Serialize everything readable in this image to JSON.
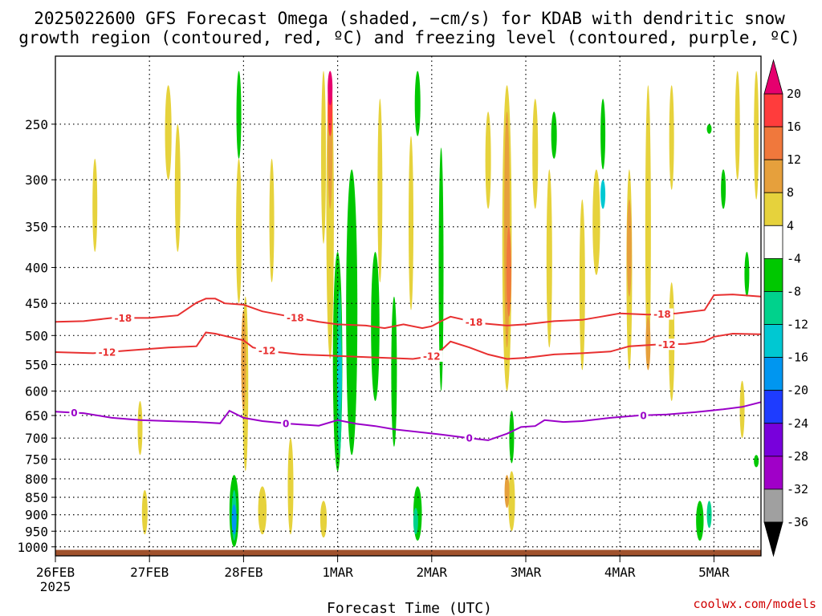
{
  "chart_data": {
    "type": "heatmap",
    "title_lines": [
      "2025022600 GFS Forecast Omega (shaded, −cm/s) for KDAB with dendritic snow",
      "growth region (contoured, red, ºC) and freezing level (contoured, purple, ºC)"
    ],
    "xlabel": "Forecast Time (UTC)",
    "x_tick_labels": [
      "26FEB",
      "27FEB",
      "28FEB",
      "1MAR",
      "2MAR",
      "3MAR",
      "4MAR",
      "5MAR"
    ],
    "x_tick_sublabel": "2025",
    "x_range_days": [
      0,
      7.5
    ],
    "y_tick_labels": [
      250,
      300,
      350,
      400,
      450,
      500,
      550,
      600,
      650,
      700,
      750,
      800,
      850,
      900,
      950,
      1000
    ],
    "y_range_hpa": [
      200,
      1030
    ],
    "y_scale": "log-pressure",
    "grid": true,
    "colorbar": {
      "levels": [
        20,
        16,
        12,
        8,
        4,
        -4,
        -8,
        -12,
        -16,
        -20,
        -24,
        -28,
        -32,
        -36
      ],
      "colors": [
        "#ff3c3c",
        "#f0783c",
        "#e6a03c",
        "#e6d23c",
        "#fffffe",
        "#00c800",
        "#00d28c",
        "#00c8d2",
        "#0096f0",
        "#1e3cff",
        "#7800dc",
        "#a000c8",
        "#a0a0a0",
        "#000000"
      ],
      "top_arrow_color": "#e6006e",
      "bottom_arrow_color": "#000000"
    },
    "ground_color": "#a0522d",
    "contours": [
      {
        "label": "-18",
        "color": "#e83030",
        "label_positions_days": [
          0.72,
          2.55,
          4.45,
          6.45
        ],
        "points": [
          [
            0,
            478
          ],
          [
            0.3,
            477
          ],
          [
            0.6,
            472
          ],
          [
            1.0,
            472
          ],
          [
            1.3,
            468
          ],
          [
            1.5,
            449
          ],
          [
            1.6,
            443
          ],
          [
            1.7,
            443
          ],
          [
            1.8,
            450
          ],
          [
            2.0,
            452
          ],
          [
            2.2,
            462
          ],
          [
            2.5,
            470
          ],
          [
            2.8,
            478
          ],
          [
            3.0,
            482
          ],
          [
            3.3,
            484
          ],
          [
            3.5,
            488
          ],
          [
            3.7,
            482
          ],
          [
            3.9,
            488
          ],
          [
            4.0,
            485
          ],
          [
            4.1,
            477
          ],
          [
            4.2,
            470
          ],
          [
            4.5,
            480
          ],
          [
            4.8,
            484
          ],
          [
            5.0,
            482
          ],
          [
            5.3,
            477
          ],
          [
            5.6,
            475
          ],
          [
            5.8,
            470
          ],
          [
            6.0,
            465
          ],
          [
            6.3,
            467
          ],
          [
            6.6,
            465
          ],
          [
            6.9,
            460
          ],
          [
            7.0,
            438
          ],
          [
            7.2,
            437
          ],
          [
            7.5,
            440
          ]
        ]
      },
      {
        "label": "-12",
        "color": "#e83030",
        "label_positions_days": [
          0.55,
          2.25,
          4.0,
          6.5
        ],
        "points": [
          [
            0,
            528
          ],
          [
            0.4,
            530
          ],
          [
            0.8,
            525
          ],
          [
            1.2,
            520
          ],
          [
            1.5,
            518
          ],
          [
            1.6,
            495
          ],
          [
            1.7,
            497
          ],
          [
            2.0,
            508
          ],
          [
            2.1,
            520
          ],
          [
            2.3,
            527
          ],
          [
            2.6,
            532
          ],
          [
            2.9,
            534
          ],
          [
            3.2,
            536
          ],
          [
            3.5,
            538
          ],
          [
            3.8,
            540
          ],
          [
            4.0,
            535
          ],
          [
            4.1,
            525
          ],
          [
            4.2,
            510
          ],
          [
            4.4,
            520
          ],
          [
            4.6,
            532
          ],
          [
            4.8,
            540
          ],
          [
            5.0,
            538
          ],
          [
            5.3,
            532
          ],
          [
            5.6,
            530
          ],
          [
            5.9,
            527
          ],
          [
            6.1,
            518
          ],
          [
            6.4,
            515
          ],
          [
            6.7,
            514
          ],
          [
            6.9,
            510
          ],
          [
            7.0,
            502
          ],
          [
            7.2,
            497
          ],
          [
            7.5,
            498
          ]
        ]
      },
      {
        "label": "0",
        "color": "#9a00c8",
        "label_positions_days": [
          0.2,
          2.45,
          4.4,
          6.25
        ],
        "points": [
          [
            0,
            642
          ],
          [
            0.3,
            645
          ],
          [
            0.6,
            655
          ],
          [
            0.9,
            660
          ],
          [
            1.2,
            662
          ],
          [
            1.5,
            664
          ],
          [
            1.75,
            667
          ],
          [
            1.85,
            640
          ],
          [
            2.0,
            655
          ],
          [
            2.2,
            662
          ],
          [
            2.5,
            668
          ],
          [
            2.8,
            672
          ],
          [
            3.0,
            660
          ],
          [
            3.2,
            668
          ],
          [
            3.4,
            673
          ],
          [
            3.6,
            680
          ],
          [
            3.9,
            687
          ],
          [
            4.1,
            692
          ],
          [
            4.4,
            700
          ],
          [
            4.6,
            705
          ],
          [
            4.8,
            690
          ],
          [
            4.95,
            675
          ],
          [
            5.1,
            673
          ],
          [
            5.2,
            660
          ],
          [
            5.4,
            664
          ],
          [
            5.6,
            662
          ],
          [
            5.9,
            655
          ],
          [
            6.2,
            650
          ],
          [
            6.5,
            648
          ],
          [
            6.8,
            643
          ],
          [
            7.1,
            637
          ],
          [
            7.3,
            632
          ],
          [
            7.5,
            622
          ]
        ]
      }
    ],
    "omega_blobs": [
      {
        "color": "#e6d23c",
        "day": 0.42,
        "p_top": 280,
        "p_bot": 380,
        "w": 0.05
      },
      {
        "color": "#e6d23c",
        "day": 0.9,
        "p_top": 620,
        "p_bot": 740,
        "w": 0.05
      },
      {
        "color": "#e6d23c",
        "day": 0.95,
        "p_top": 830,
        "p_bot": 960,
        "w": 0.06
      },
      {
        "color": "#e6d23c",
        "day": 1.2,
        "p_top": 220,
        "p_bot": 300,
        "w": 0.07
      },
      {
        "color": "#e6d23c",
        "day": 1.3,
        "p_top": 250,
        "p_bot": 380,
        "w": 0.06
      },
      {
        "color": "#e6d23c",
        "day": 1.95,
        "p_top": 280,
        "p_bot": 450,
        "w": 0.06
      },
      {
        "color": "#e6d23c",
        "day": 2.02,
        "p_top": 440,
        "p_bot": 780,
        "w": 0.06
      },
      {
        "color": "#e6a03c",
        "day": 2.0,
        "p_top": 460,
        "p_bot": 640,
        "w": 0.03
      },
      {
        "color": "#00c800",
        "day": 1.95,
        "p_top": 210,
        "p_bot": 280,
        "w": 0.05
      },
      {
        "color": "#e6d23c",
        "day": 2.2,
        "p_top": 820,
        "p_bot": 960,
        "w": 0.09
      },
      {
        "color": "#00c800",
        "day": 1.9,
        "p_top": 790,
        "p_bot": 1000,
        "w": 0.1
      },
      {
        "color": "#00d28c",
        "day": 1.9,
        "p_top": 830,
        "p_bot": 980,
        "w": 0.05
      },
      {
        "color": "#0096f0",
        "day": 1.9,
        "p_top": 870,
        "p_bot": 960,
        "w": 0.025
      },
      {
        "color": "#e6d23c",
        "day": 2.3,
        "p_top": 280,
        "p_bot": 420,
        "w": 0.04
      },
      {
        "color": "#e6d23c",
        "day": 2.85,
        "p_top": 210,
        "p_bot": 370,
        "w": 0.05
      },
      {
        "color": "#e6d23c",
        "day": 2.92,
        "p_top": 210,
        "p_bot": 540,
        "w": 0.08
      },
      {
        "color": "#e6a03c",
        "day": 2.92,
        "p_top": 210,
        "p_bot": 330,
        "w": 0.05
      },
      {
        "color": "#ff3c3c",
        "day": 2.92,
        "p_top": 210,
        "p_bot": 260,
        "w": 0.03
      },
      {
        "color": "#e6006e",
        "day": 2.92,
        "p_top": 210,
        "p_bot": 235,
        "w": 0.015
      },
      {
        "color": "#e6d23c",
        "day": 2.85,
        "p_top": 860,
        "p_bot": 970,
        "w": 0.07
      },
      {
        "color": "#e6d23c",
        "day": 2.5,
        "p_top": 700,
        "p_bot": 960,
        "w": 0.06
      },
      {
        "color": "#00c800",
        "day": 3.15,
        "p_top": 290,
        "p_bot": 740,
        "w": 0.12
      },
      {
        "color": "#00c800",
        "day": 3.0,
        "p_top": 380,
        "p_bot": 780,
        "w": 0.1
      },
      {
        "color": "#00d28c",
        "day": 3.02,
        "p_top": 430,
        "p_bot": 740,
        "w": 0.05
      },
      {
        "color": "#00c8d2",
        "day": 3.02,
        "p_top": 500,
        "p_bot": 640,
        "w": 0.025
      },
      {
        "color": "#00c800",
        "day": 3.4,
        "p_top": 380,
        "p_bot": 620,
        "w": 0.09
      },
      {
        "color": "#00c800",
        "day": 3.6,
        "p_top": 440,
        "p_bot": 720,
        "w": 0.06
      },
      {
        "color": "#e6d23c",
        "day": 3.45,
        "p_top": 230,
        "p_bot": 420,
        "w": 0.05
      },
      {
        "color": "#e6d23c",
        "day": 3.78,
        "p_top": 260,
        "p_bot": 460,
        "w": 0.05
      },
      {
        "color": "#00c800",
        "day": 3.85,
        "p_top": 210,
        "p_bot": 260,
        "w": 0.06
      },
      {
        "color": "#00c800",
        "day": 3.85,
        "p_top": 820,
        "p_bot": 980,
        "w": 0.09
      },
      {
        "color": "#00d28c",
        "day": 3.83,
        "p_top": 880,
        "p_bot": 960,
        "w": 0.04
      },
      {
        "color": "#00c800",
        "day": 4.1,
        "p_top": 270,
        "p_bot": 600,
        "w": 0.03
      },
      {
        "color": "#e6d23c",
        "day": 4.6,
        "p_top": 240,
        "p_bot": 330,
        "w": 0.06
      },
      {
        "color": "#e6d23c",
        "day": 4.8,
        "p_top": 220,
        "p_bot": 600,
        "w": 0.1
      },
      {
        "color": "#e6a03c",
        "day": 4.8,
        "p_top": 240,
        "p_bot": 520,
        "w": 0.06
      },
      {
        "color": "#f0783c",
        "day": 4.82,
        "p_top": 350,
        "p_bot": 470,
        "w": 0.03
      },
      {
        "color": "#e6d23c",
        "day": 4.85,
        "p_top": 780,
        "p_bot": 950,
        "w": 0.07
      },
      {
        "color": "#e6a03c",
        "day": 4.8,
        "p_top": 790,
        "p_bot": 880,
        "w": 0.025
      },
      {
        "color": "#00c800",
        "day": 4.85,
        "p_top": 640,
        "p_bot": 760,
        "w": 0.04
      },
      {
        "color": "#e6d23c",
        "day": 5.1,
        "p_top": 230,
        "p_bot": 330,
        "w": 0.06
      },
      {
        "color": "#e6d23c",
        "day": 5.25,
        "p_top": 290,
        "p_bot": 520,
        "w": 0.06
      },
      {
        "color": "#00c800",
        "day": 5.3,
        "p_top": 240,
        "p_bot": 280,
        "w": 0.06
      },
      {
        "color": "#e6d23c",
        "day": 5.6,
        "p_top": 320,
        "p_bot": 560,
        "w": 0.06
      },
      {
        "color": "#e6d23c",
        "day": 5.75,
        "p_top": 290,
        "p_bot": 410,
        "w": 0.08
      },
      {
        "color": "#00c800",
        "day": 5.82,
        "p_top": 230,
        "p_bot": 290,
        "w": 0.05
      },
      {
        "color": "#00c8d2",
        "day": 5.82,
        "p_top": 300,
        "p_bot": 330,
        "w": 0.02
      },
      {
        "color": "#e6d23c",
        "day": 6.1,
        "p_top": 290,
        "p_bot": 560,
        "w": 0.06
      },
      {
        "color": "#e6a03c",
        "day": 6.1,
        "p_top": 320,
        "p_bot": 440,
        "w": 0.03
      },
      {
        "color": "#e6d23c",
        "day": 6.3,
        "p_top": 220,
        "p_bot": 560,
        "w": 0.06
      },
      {
        "color": "#e6a03c",
        "day": 6.3,
        "p_top": 470,
        "p_bot": 560,
        "w": 0.03
      },
      {
        "color": "#e6d23c",
        "day": 6.55,
        "p_top": 220,
        "p_bot": 310,
        "w": 0.05
      },
      {
        "color": "#e6d23c",
        "day": 6.55,
        "p_top": 420,
        "p_bot": 620,
        "w": 0.06
      },
      {
        "color": "#00c800",
        "day": 6.85,
        "p_top": 860,
        "p_bot": 980,
        "w": 0.08
      },
      {
        "color": "#00d28c",
        "day": 6.95,
        "p_top": 860,
        "p_bot": 940,
        "w": 0.04
      },
      {
        "color": "#00c800",
        "day": 6.95,
        "p_top": 250,
        "p_bot": 258,
        "w": 0.02
      },
      {
        "color": "#00c800",
        "day": 7.1,
        "p_top": 290,
        "p_bot": 330,
        "w": 0.03
      },
      {
        "color": "#e6d23c",
        "day": 7.25,
        "p_top": 210,
        "p_bot": 300,
        "w": 0.04
      },
      {
        "color": "#00c800",
        "day": 7.35,
        "p_top": 380,
        "p_bot": 440,
        "w": 0.05
      },
      {
        "color": "#e6d23c",
        "day": 7.3,
        "p_top": 580,
        "p_bot": 700,
        "w": 0.03
      },
      {
        "color": "#e6d23c",
        "day": 7.45,
        "p_top": 210,
        "p_bot": 320,
        "w": 0.03
      },
      {
        "color": "#00c800",
        "day": 7.45,
        "p_top": 740,
        "p_bot": 770,
        "w": 0.02
      }
    ]
  },
  "credit": "coolwx.com/models"
}
